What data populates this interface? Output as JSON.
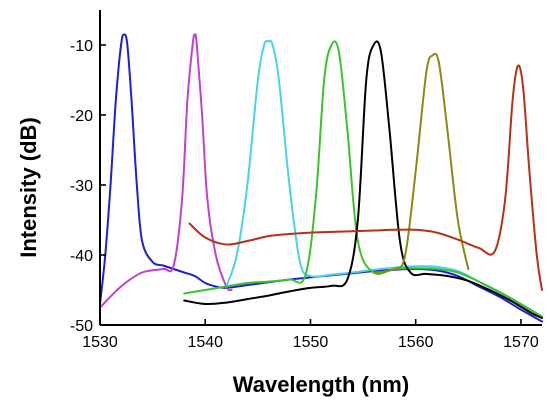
{
  "chart_data": {
    "type": "line",
    "title": "",
    "xlabel": "Wavelength (nm)",
    "ylabel": "Intensity (dB)",
    "xlim": [
      1530,
      1572
    ],
    "ylim": [
      -50,
      -5
    ],
    "xticks": [
      1530,
      1540,
      1550,
      1560,
      1570
    ],
    "yticks": [
      -10,
      -20,
      -30,
      -40,
      -50
    ],
    "grid": false,
    "legend": "none",
    "series": [
      {
        "color": "#1f1fd6",
        "x": [
          1530,
          1530.5,
          1531,
          1531.5,
          1532,
          1532.3,
          1532.6,
          1533,
          1533.5,
          1534,
          1535,
          1536,
          1537,
          1538,
          1539,
          1540,
          1541,
          1542,
          1544,
          1546,
          1548,
          1550,
          1552,
          1554,
          1556,
          1558,
          1560,
          1562,
          1564,
          1566,
          1568,
          1570,
          1572
        ],
        "y": [
          -47,
          -40,
          -30,
          -18,
          -10,
          -8.5,
          -10,
          -18,
          -30,
          -38,
          -41,
          -41.5,
          -42,
          -42.5,
          -43,
          -44,
          -44.5,
          -44.7,
          -44.3,
          -43.9,
          -43.5,
          -43.2,
          -42.9,
          -42.6,
          -42.3,
          -42.1,
          -42,
          -42.2,
          -43,
          -44.5,
          -46,
          -47.8,
          -49.5
        ]
      },
      {
        "color": "#c23fd0",
        "x": [
          1530,
          1532,
          1534,
          1536,
          1537,
          1537.8,
          1538.3,
          1538.8,
          1539,
          1539.2,
          1539.7,
          1540.2,
          1541,
          1542,
          1542.5
        ],
        "y": [
          -47.5,
          -44.5,
          -42.5,
          -42,
          -41.5,
          -32,
          -18,
          -10,
          -8.5,
          -10,
          -20,
          -32,
          -40,
          -44.5,
          -45
        ]
      },
      {
        "color": "#49d3e8",
        "x": [
          1542,
          1543,
          1544,
          1545,
          1545.6,
          1546,
          1546.4,
          1547,
          1548,
          1549,
          1550,
          1552,
          1554,
          1556,
          1558,
          1560,
          1562,
          1564,
          1566,
          1568,
          1570,
          1572
        ],
        "y": [
          -44.5,
          -40,
          -30,
          -15,
          -10,
          -9.5,
          -10,
          -15,
          -30,
          -41,
          -43,
          -42.8,
          -42.5,
          -42.1,
          -41.8,
          -41.6,
          -41.7,
          -42.3,
          -43.8,
          -45.5,
          -47.2,
          -49
        ]
      },
      {
        "color": "#39c42c",
        "x": [
          1538,
          1540,
          1542,
          1544,
          1546,
          1548,
          1549.5,
          1550.5,
          1551.3,
          1552,
          1552.7,
          1553.5,
          1554.5,
          1556,
          1558,
          1560,
          1562,
          1564,
          1566,
          1568,
          1570,
          1572
        ],
        "y": [
          -45.5,
          -45,
          -44.5,
          -44,
          -43.8,
          -43.5,
          -43,
          -32,
          -15,
          -10,
          -11,
          -22,
          -38,
          -42.5,
          -42,
          -41.9,
          -42,
          -42.5,
          -43.8,
          -45.3,
          -47,
          -48.8
        ]
      },
      {
        "color": "#000000",
        "x": [
          1538,
          1540,
          1542,
          1544,
          1546,
          1548,
          1550,
          1552,
          1553.5,
          1554.5,
          1555.3,
          1556,
          1556.7,
          1557.5,
          1558.5,
          1559.5,
          1561,
          1563,
          1565,
          1567,
          1569,
          1571,
          1572
        ],
        "y": [
          -46.5,
          -47,
          -46.8,
          -46.3,
          -45.8,
          -45.2,
          -44.7,
          -44.4,
          -43.5,
          -35,
          -15,
          -10,
          -11,
          -22,
          -38,
          -42.5,
          -42.7,
          -43,
          -43.7,
          -45,
          -46.5,
          -48.3,
          -49
        ]
      },
      {
        "color": "#8b8a12",
        "x": [
          1556,
          1558,
          1559,
          1560,
          1561,
          1561.6,
          1562.2,
          1563,
          1564,
          1565
        ],
        "y": [
          -42.5,
          -42,
          -40,
          -28,
          -14,
          -11.5,
          -12.5,
          -22,
          -35,
          -42
        ]
      },
      {
        "color": "#b73018",
        "x": [
          1538.5,
          1540,
          1542,
          1544,
          1546,
          1548,
          1550,
          1552,
          1554,
          1556,
          1558,
          1560,
          1562,
          1564,
          1566,
          1567.5,
          1568.5,
          1569.2,
          1569.7,
          1570.2,
          1570.8,
          1571.5,
          1572
        ],
        "y": [
          -35.5,
          -37.5,
          -38.5,
          -38,
          -37.3,
          -37,
          -36.8,
          -36.7,
          -36.6,
          -36.5,
          -36.4,
          -36.4,
          -36.8,
          -37.8,
          -39,
          -39.5,
          -32,
          -18,
          -13,
          -16,
          -28,
          -40,
          -45
        ]
      }
    ]
  }
}
